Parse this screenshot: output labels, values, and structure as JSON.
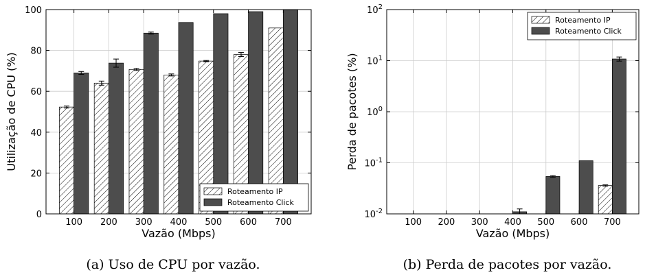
{
  "chart_data": [
    {
      "type": "bar",
      "caption": "(a) Uso de CPU por vazão.",
      "xlabel": "Vazão (Mbps)",
      "ylabel": "Utilização de CPU (%)",
      "categories": [
        "100",
        "200",
        "300",
        "400",
        "500",
        "600",
        "700"
      ],
      "ylim": [
        0,
        100
      ],
      "yticks": [
        0,
        20,
        40,
        60,
        80,
        100
      ],
      "grid": true,
      "legend_position": "bottom-right",
      "series": [
        {
          "name": "Roteamento IP",
          "pattern": "hatch",
          "color": "#ffffff",
          "values": [
            52.3,
            64.0,
            70.7,
            68.0,
            74.8,
            78.0,
            91.0
          ],
          "errors": [
            0.5,
            1.0,
            0.5,
            0.5,
            0.3,
            1.0,
            0
          ]
        },
        {
          "name": "Roteamento Click",
          "pattern": "solid",
          "color": "#4d4d4d",
          "values": [
            69.0,
            73.8,
            88.5,
            93.7,
            98.0,
            99.0,
            100.0
          ],
          "errors": [
            0.7,
            2.0,
            0.5,
            0,
            0,
            0,
            0
          ]
        }
      ]
    },
    {
      "type": "bar",
      "caption": "(b) Perda de pacotes por vazão.",
      "xlabel": "Vazão (Mbps)",
      "ylabel": "Perda de pacotes (%)",
      "categories": [
        "100",
        "200",
        "300",
        "400",
        "500",
        "600",
        "700"
      ],
      "yscale": "log",
      "ylim": [
        0.01,
        100
      ],
      "yticks": [
        0.01,
        0.1,
        1,
        10,
        100
      ],
      "ytick_labels": [
        {
          "base": "10",
          "exp": "-2"
        },
        {
          "base": "10",
          "exp": "-1"
        },
        {
          "base": "10",
          "exp": "0"
        },
        {
          "base": "10",
          "exp": "1"
        },
        {
          "base": "10",
          "exp": "2"
        }
      ],
      "grid": true,
      "legend_position": "top-right",
      "series": [
        {
          "name": "Roteamento IP",
          "pattern": "hatch",
          "color": "#ffffff",
          "values": [
            null,
            null,
            null,
            null,
            null,
            null,
            0.036
          ],
          "errors": [
            0,
            0,
            0,
            0,
            0,
            0,
            0.001
          ]
        },
        {
          "name": "Roteamento Click",
          "pattern": "solid",
          "color": "#4d4d4d",
          "values": [
            null,
            null,
            null,
            0.011,
            0.054,
            0.11,
            10.8
          ],
          "errors": [
            0,
            0,
            0,
            0.0015,
            0.002,
            0,
            1.0
          ]
        }
      ]
    }
  ]
}
